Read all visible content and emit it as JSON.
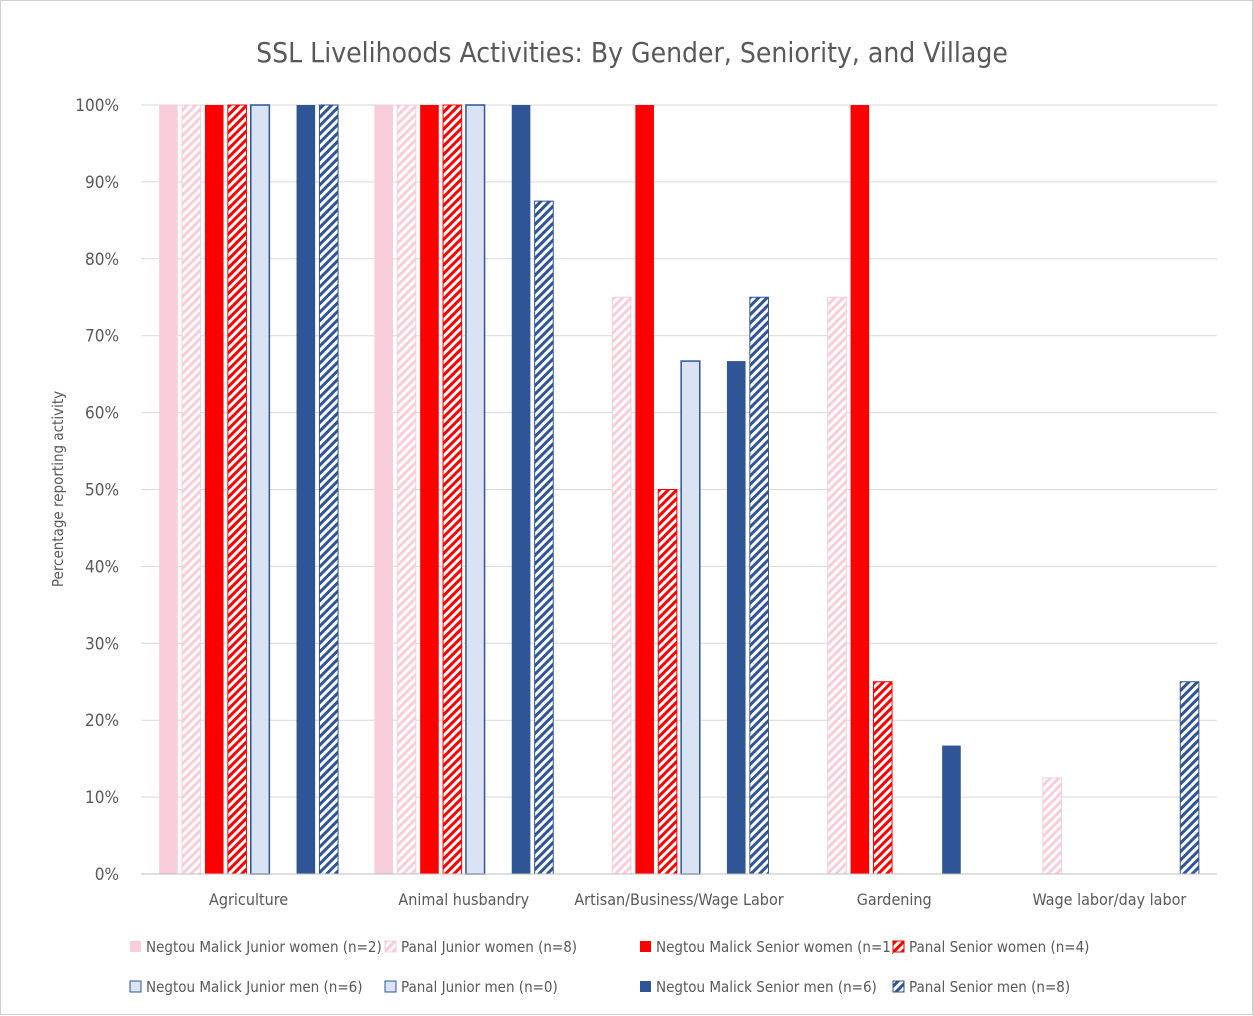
{
  "chart_data": {
    "type": "bar",
    "title": "SSL Livelihoods Activities: By Gender, Seniority, and Village",
    "xlabel": "",
    "ylabel": "Percentage reporting activity",
    "ylim": [
      0,
      100
    ],
    "yticks": [
      "0%",
      "10%",
      "20%",
      "30%",
      "40%",
      "50%",
      "60%",
      "70%",
      "80%",
      "90%",
      "100%"
    ],
    "grid": true,
    "legend_position": "bottom",
    "categories": [
      "Agriculture",
      "Animal husbandry",
      "Artisan/Business/Wage Labor",
      "Gardening",
      "Wage labor/day labor"
    ],
    "series": [
      {
        "name": "Negtou Malick Junior women (n=2)",
        "values": [
          100,
          100,
          0,
          0,
          0
        ],
        "color": "#f9cdd9",
        "style": "solid"
      },
      {
        "name": "Panal Junior women (n=8)",
        "values": [
          100,
          100,
          75,
          75,
          12.5
        ],
        "color": "#f9cdd9",
        "style": "hatch"
      },
      {
        "name": "Negtou Malick Senior women (n=1)",
        "values": [
          100,
          100,
          100,
          100,
          0
        ],
        "color": "#ff0000",
        "style": "solid"
      },
      {
        "name": "Panal Senior women (n=4)",
        "values": [
          100,
          100,
          50,
          25,
          0
        ],
        "color": "#ff0000",
        "style": "hatch"
      },
      {
        "name": "Negtou Malick Junior men (n=6)",
        "values": [
          100,
          100,
          66.7,
          0,
          0
        ],
        "color": "#dae3f3",
        "style": "outlined"
      },
      {
        "name": "Panal Junior men (n=0)",
        "values": [
          0,
          0,
          0,
          0,
          0
        ],
        "color": "#dae3f3",
        "style": "outlined"
      },
      {
        "name": "Negtou Malick Senior men (n=6)",
        "values": [
          100,
          100,
          66.7,
          16.7,
          0
        ],
        "color": "#2f5597",
        "style": "solid"
      },
      {
        "name": "Panal Senior men (n=8)",
        "values": [
          100,
          87.5,
          75,
          0,
          25
        ],
        "color": "#2f5597",
        "style": "hatch"
      }
    ]
  }
}
